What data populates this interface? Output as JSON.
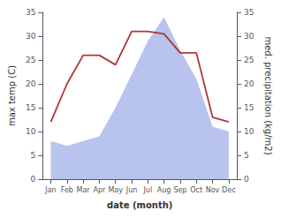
{
  "chart_data": {
    "type": "line",
    "categories": [
      "Jan",
      "Feb",
      "Mar",
      "Apr",
      "May",
      "Jun",
      "Jul",
      "Aug",
      "Sep",
      "Oct",
      "Nov",
      "Dec"
    ],
    "series": [
      {
        "type": "area",
        "axis": "y2",
        "color": "#b8c4ee",
        "values": [
          8,
          7,
          8,
          9,
          15,
          22,
          29,
          34,
          27,
          21,
          11,
          10
        ]
      },
      {
        "type": "line",
        "color": "#b03535",
        "values": [
          12,
          20,
          26,
          26,
          24,
          31,
          31,
          30.5,
          26.5,
          26.5,
          13,
          12
        ]
      }
    ],
    "xlabel": "date (month)",
    "ylabel": "max temp (C)",
    "y2label": "med. precipitation (kg/m2)",
    "ylim": [
      0,
      35
    ],
    "yticks": [
      0,
      5,
      10,
      15,
      20,
      25,
      30,
      35
    ],
    "y2lim": [
      0,
      35
    ],
    "y2ticks": [
      0,
      5,
      10,
      15,
      20,
      25,
      30,
      35
    ],
    "grid": false
  }
}
